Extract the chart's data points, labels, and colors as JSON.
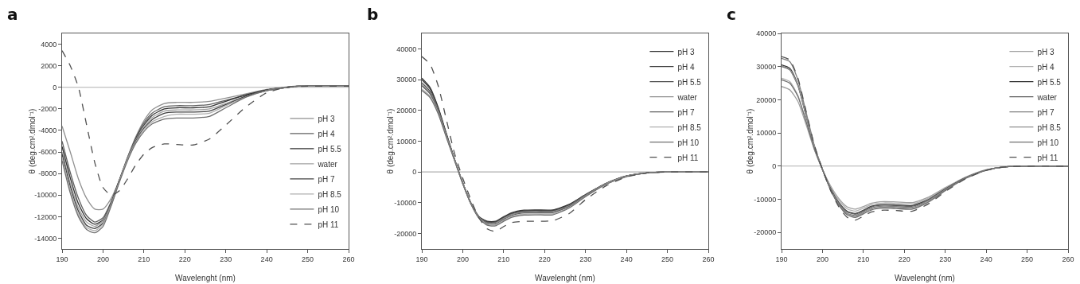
{
  "chart_data": [
    {
      "type": "line",
      "title": "a",
      "xlabel": "Wavelenght (nm)",
      "ylabel": "θ (deg.cm².dmol⁻¹)",
      "xlim": [
        190,
        260
      ],
      "xticks": [
        190,
        200,
        210,
        220,
        230,
        240,
        250,
        260
      ],
      "ylim": [
        -15000,
        5000
      ],
      "yticks": [
        -14000,
        -12000,
        -10000,
        -8000,
        -6000,
        -4000,
        -2000,
        0,
        2000,
        4000
      ],
      "grid": false,
      "legend": "right",
      "marker": "none",
      "ref_lines": [
        {
          "axis": "y",
          "value": 0,
          "color": "#b0b0b0"
        }
      ],
      "x": [
        190,
        192,
        194,
        196,
        198,
        200,
        202,
        204,
        206,
        208,
        210,
        212,
        215,
        218,
        222,
        226,
        230,
        235,
        240,
        245,
        250,
        260
      ],
      "series": [
        {
          "name": "pH 3",
          "color": "#909090",
          "line_style": "solid",
          "values": [
            -3600,
            -6000,
            -8500,
            -10300,
            -11300,
            -11300,
            -10300,
            -8600,
            -6500,
            -4600,
            -3100,
            -2100,
            -1500,
            -1400,
            -1400,
            -1300,
            -1000,
            -600,
            -200,
            50,
            150,
            150
          ]
        },
        {
          "name": "pH 4",
          "color": "#606060",
          "line_style": "solid",
          "values": [
            -5000,
            -7900,
            -10300,
            -11900,
            -12500,
            -12100,
            -10600,
            -8600,
            -6500,
            -4700,
            -3300,
            -2400,
            -1800,
            -1700,
            -1700,
            -1600,
            -1200,
            -700,
            -250,
            0,
            150,
            150
          ]
        },
        {
          "name": "pH 5.5",
          "color": "#303030",
          "line_style": "solid",
          "values": [
            -5500,
            -8400,
            -10800,
            -12200,
            -12700,
            -12300,
            -10700,
            -8600,
            -6600,
            -4800,
            -3500,
            -2600,
            -2000,
            -1900,
            -1900,
            -1800,
            -1300,
            -700,
            -250,
            0,
            150,
            150
          ]
        },
        {
          "name": "water",
          "color": "#a0a0a0",
          "line_style": "solid",
          "values": [
            -6000,
            -8900,
            -11200,
            -12500,
            -12900,
            -12400,
            -10800,
            -8700,
            -6600,
            -4900,
            -3600,
            -2800,
            -2200,
            -2100,
            -2100,
            -2000,
            -1500,
            -800,
            -300,
            0,
            150,
            150
          ]
        },
        {
          "name": "pH 7",
          "color": "#404040",
          "line_style": "solid",
          "values": [
            -6200,
            -9200,
            -11500,
            -12800,
            -13100,
            -12600,
            -10900,
            -8700,
            -6700,
            -5000,
            -3800,
            -3000,
            -2400,
            -2300,
            -2300,
            -2200,
            -1600,
            -800,
            -300,
            0,
            150,
            150
          ]
        },
        {
          "name": "pH 8.5",
          "color": "#b0b0b0",
          "line_style": "solid",
          "values": [
            -6500,
            -9500,
            -11800,
            -13000,
            -13300,
            -12700,
            -10900,
            -8700,
            -6700,
            -5100,
            -3900,
            -3200,
            -2700,
            -2500,
            -2500,
            -2400,
            -1700,
            -900,
            -300,
            0,
            150,
            150
          ]
        },
        {
          "name": "pH 10",
          "color": "#707070",
          "line_style": "solid",
          "values": [
            -6800,
            -9800,
            -12000,
            -13200,
            -13500,
            -12900,
            -11000,
            -8800,
            -6800,
            -5200,
            -4100,
            -3400,
            -2950,
            -2850,
            -2850,
            -2700,
            -1900,
            -900,
            -300,
            0,
            150,
            150
          ]
        },
        {
          "name": "pH 11",
          "color": "#505050",
          "line_style": "dashed",
          "values": [
            3400,
            2000,
            0,
            -3500,
            -7000,
            -9300,
            -10000,
            -9600,
            -8500,
            -7200,
            -6200,
            -5600,
            -5250,
            -5300,
            -5350,
            -4800,
            -3500,
            -1800,
            -500,
            0,
            100,
            100
          ]
        }
      ]
    },
    {
      "type": "line",
      "title": "b",
      "xlabel": "Wavelenght (nm)",
      "ylabel": "θ (deg.cm².dmol⁻¹)",
      "xlim": [
        190,
        260
      ],
      "xticks": [
        190,
        200,
        210,
        220,
        230,
        240,
        250,
        260
      ],
      "ylim": [
        -25000,
        45000
      ],
      "yticks": [
        -20000,
        -10000,
        0,
        10000,
        20000,
        30000,
        40000
      ],
      "grid": false,
      "legend": "top right",
      "marker": "none",
      "ref_lines": [
        {
          "axis": "y",
          "value": 0,
          "color": "#b0b0b0"
        }
      ],
      "x": [
        190,
        192,
        194,
        196,
        198,
        200,
        202,
        204,
        206,
        208,
        210,
        212,
        215,
        218,
        222,
        226,
        230,
        235,
        240,
        245,
        250,
        260
      ],
      "series": [
        {
          "name": "pH 3",
          "color": "#303030",
          "line_style": "solid",
          "values": [
            30500,
            27500,
            21000,
            12500,
            4200,
            -3500,
            -10000,
            -14500,
            -16000,
            -16000,
            -14500,
            -13200,
            -12400,
            -12300,
            -12300,
            -10500,
            -7300,
            -3700,
            -1300,
            -300,
            0,
            0
          ]
        },
        {
          "name": "pH 4",
          "color": "#404040",
          "line_style": "solid",
          "values": [
            30000,
            27000,
            20700,
            12300,
            4100,
            -3500,
            -10100,
            -14600,
            -16200,
            -16200,
            -14700,
            -13400,
            -12600,
            -12500,
            -12500,
            -10700,
            -7400,
            -3700,
            -1300,
            -300,
            0,
            0
          ]
        },
        {
          "name": "pH 5.5",
          "color": "#505050",
          "line_style": "solid",
          "values": [
            29000,
            26200,
            20200,
            12000,
            4000,
            -3600,
            -10200,
            -14700,
            -16400,
            -16400,
            -14900,
            -13600,
            -12800,
            -12700,
            -12700,
            -10900,
            -7500,
            -3800,
            -1400,
            -300,
            0,
            0
          ]
        },
        {
          "name": "water",
          "color": "#909090",
          "line_style": "solid",
          "values": [
            28500,
            25800,
            20000,
            11900,
            3900,
            -3600,
            -10200,
            -14800,
            -16600,
            -16600,
            -15100,
            -13800,
            -13000,
            -12900,
            -12900,
            -11000,
            -7600,
            -3800,
            -1400,
            -300,
            0,
            0
          ]
        },
        {
          "name": "pH 7",
          "color": "#606060",
          "line_style": "solid",
          "values": [
            28000,
            25400,
            19700,
            11700,
            3900,
            -3700,
            -10300,
            -14900,
            -16800,
            -16900,
            -15400,
            -14100,
            -13300,
            -13200,
            -13200,
            -11200,
            -7700,
            -3900,
            -1400,
            -300,
            0,
            0
          ]
        },
        {
          "name": "pH 8.5",
          "color": "#b0b0b0",
          "line_style": "solid",
          "values": [
            27000,
            24600,
            19200,
            11400,
            3800,
            -3700,
            -10300,
            -15000,
            -17100,
            -17200,
            -15700,
            -14400,
            -13700,
            -13600,
            -13600,
            -11500,
            -7900,
            -3900,
            -1400,
            -300,
            0,
            0
          ]
        },
        {
          "name": "pH 10",
          "color": "#707070",
          "line_style": "solid",
          "values": [
            26500,
            24200,
            18900,
            11200,
            3700,
            -3800,
            -10400,
            -15100,
            -17300,
            -17500,
            -16000,
            -14700,
            -14000,
            -13900,
            -13900,
            -11700,
            -8000,
            -4000,
            -1500,
            -300,
            0,
            0
          ]
        },
        {
          "name": "pH 11",
          "color": "#505050",
          "line_style": "dashed",
          "values": [
            37500,
            35000,
            28000,
            17000,
            6000,
            -2000,
            -9000,
            -15000,
            -18500,
            -19300,
            -17700,
            -16400,
            -16000,
            -16000,
            -15800,
            -13500,
            -9000,
            -4500,
            -1600,
            -300,
            0,
            0
          ]
        }
      ]
    },
    {
      "type": "line",
      "title": "c",
      "xlabel": "Wavelenght (nm)",
      "ylabel": "θ (deg.cm².dmol⁻¹)",
      "xlim": [
        190,
        260
      ],
      "xticks": [
        190,
        200,
        210,
        220,
        230,
        240,
        250,
        260
      ],
      "ylim": [
        -25000,
        40000
      ],
      "yticks": [
        -20000,
        -10000,
        0,
        10000,
        20000,
        30000,
        40000
      ],
      "grid": false,
      "legend": "top right",
      "marker": "none",
      "ref_lines": [
        {
          "axis": "y",
          "value": 0,
          "color": "#b0b0b0"
        }
      ],
      "x": [
        190,
        192,
        194,
        196,
        198,
        200,
        202,
        204,
        206,
        208,
        210,
        212,
        215,
        218,
        222,
        226,
        230,
        235,
        240,
        245,
        250,
        260
      ],
      "series": [
        {
          "name": "pH 3",
          "color": "#a0a0a0",
          "line_style": "solid",
          "values": [
            24000,
            23000,
            19500,
            12500,
            5000,
            -1000,
            -6000,
            -9800,
            -12300,
            -13000,
            -12200,
            -11200,
            -10700,
            -10800,
            -11000,
            -9300,
            -6500,
            -3300,
            -1100,
            -200,
            0,
            0
          ]
        },
        {
          "name": "pH 4",
          "color": "#b0b0b0",
          "line_style": "solid",
          "values": [
            26500,
            25500,
            21300,
            13500,
            5300,
            -1000,
            -6300,
            -10300,
            -12900,
            -13600,
            -12700,
            -11600,
            -11100,
            -11200,
            -11400,
            -9600,
            -6700,
            -3400,
            -1100,
            -200,
            0,
            0
          ]
        },
        {
          "name": "pH 5.5",
          "color": "#303030",
          "line_style": "solid",
          "values": [
            30500,
            29500,
            24500,
            15300,
            6000,
            -1000,
            -6800,
            -11000,
            -13600,
            -14300,
            -13300,
            -12100,
            -11600,
            -11700,
            -11900,
            -10000,
            -6900,
            -3500,
            -1200,
            -200,
            0,
            0
          ]
        },
        {
          "name": "water",
          "color": "#606060",
          "line_style": "solid",
          "values": [
            30000,
            29000,
            24200,
            15100,
            5900,
            -1000,
            -6900,
            -11200,
            -13800,
            -14500,
            -13500,
            -12300,
            -11800,
            -11900,
            -12100,
            -10100,
            -7000,
            -3500,
            -1200,
            -200,
            0,
            0
          ]
        },
        {
          "name": "pH 7",
          "color": "#808080",
          "line_style": "solid",
          "values": [
            32500,
            31500,
            26000,
            16200,
            6300,
            -1000,
            -7100,
            -11500,
            -14200,
            -14900,
            -13800,
            -12600,
            -12100,
            -12200,
            -12400,
            -10300,
            -7100,
            -3600,
            -1200,
            -200,
            0,
            0
          ]
        },
        {
          "name": "pH 8.5",
          "color": "#909090",
          "line_style": "solid",
          "values": [
            30200,
            29200,
            24400,
            15200,
            6000,
            -1000,
            -7100,
            -11600,
            -14400,
            -15200,
            -14100,
            -12900,
            -12400,
            -12500,
            -12700,
            -10600,
            -7300,
            -3600,
            -1200,
            -200,
            0,
            0
          ]
        },
        {
          "name": "pH 10",
          "color": "#707070",
          "line_style": "solid",
          "values": [
            26000,
            25000,
            21000,
            13400,
            5300,
            -1100,
            -7200,
            -11800,
            -14700,
            -15500,
            -14400,
            -13200,
            -12700,
            -12800,
            -13000,
            -10800,
            -7400,
            -3700,
            -1200,
            -200,
            0,
            0
          ]
        },
        {
          "name": "pH 11",
          "color": "#505050",
          "line_style": "dashed",
          "values": [
            33000,
            32000,
            26500,
            16500,
            6400,
            -1000,
            -7400,
            -12300,
            -15400,
            -16300,
            -15100,
            -13800,
            -13300,
            -13400,
            -13600,
            -11300,
            -7700,
            -3800,
            -1300,
            -200,
            0,
            0
          ]
        }
      ]
    }
  ]
}
